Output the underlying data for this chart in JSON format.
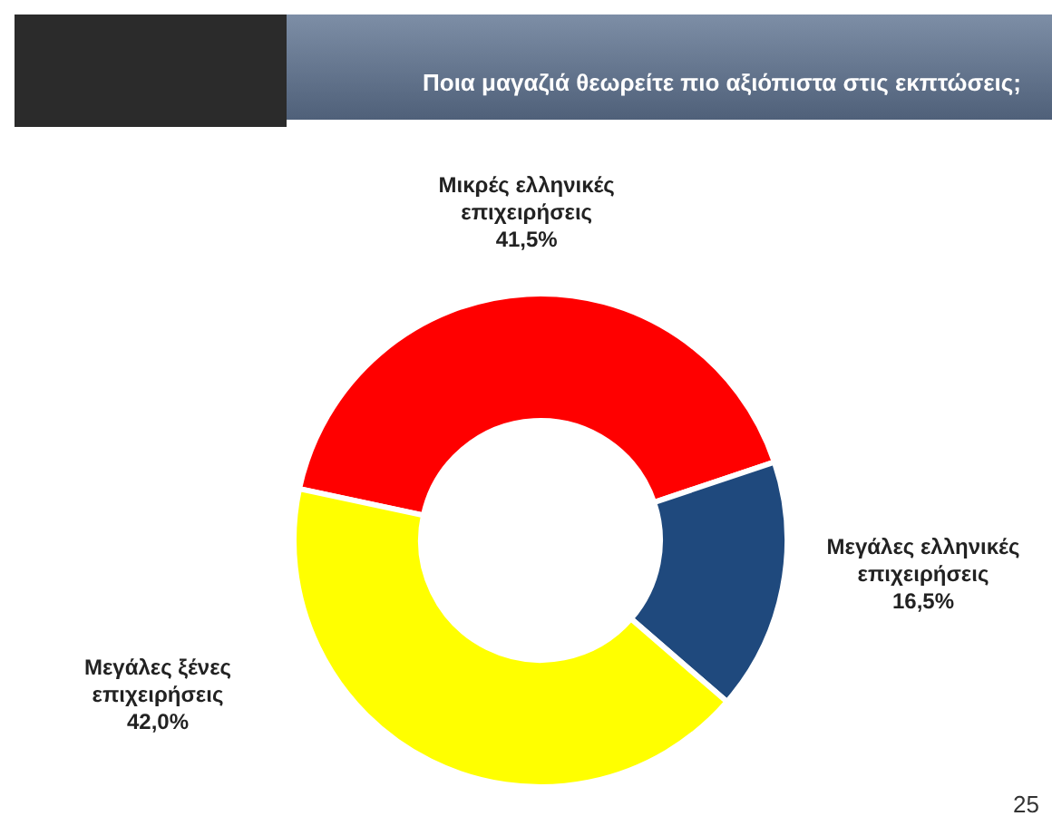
{
  "chart_data": {
    "type": "donut",
    "title": "Ποια μαγαζιά θεωρείτε πιο αξιόπιστα στις εκπτώσεις;",
    "categories": [
      "Μικρές ελληνικές επιχειρήσεις",
      "Μεγάλες ελληνικές επιχειρήσεις",
      "Μεγάλες ξένες επιχειρήσεις"
    ],
    "values": [
      41.5,
      16.5,
      42.0
    ],
    "colors": [
      "#ff0000",
      "#1f497d",
      "#ffff00"
    ],
    "value_labels": [
      "41,5%",
      "16,5%",
      "42,0%"
    ],
    "annotations": [
      "25"
    ]
  }
}
